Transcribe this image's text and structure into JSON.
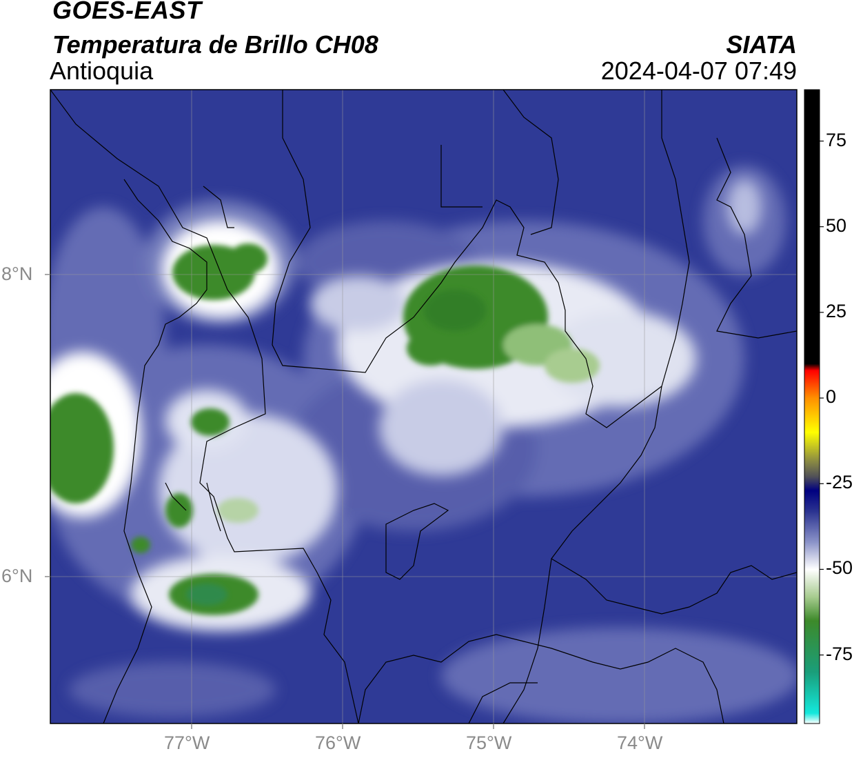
{
  "header": {
    "satellite": "GOES-EAST",
    "product": "Temperatura de Brillo CH08",
    "region": "Antioquia",
    "agency": "SIATA",
    "datetime": "2024-04-07 07:49"
  },
  "axes": {
    "lon_ticks": [
      {
        "value": -77,
        "label": "77°W"
      },
      {
        "value": -76,
        "label": "76°W"
      },
      {
        "value": -75,
        "label": "75°W"
      },
      {
        "value": -74,
        "label": "74°W"
      }
    ],
    "lat_ticks": [
      {
        "value": 8,
        "label": "8°N"
      },
      {
        "value": 6,
        "label": "6°N"
      }
    ],
    "lon_range": [
      -77.95,
      -73.0
    ],
    "lat_range": [
      5.05,
      9.25
    ],
    "gridlines": true
  },
  "colorbar": {
    "ticks": [
      {
        "value": 75,
        "label": "75"
      },
      {
        "value": 50,
        "label": "50"
      },
      {
        "value": 25,
        "label": "25"
      },
      {
        "value": 0,
        "label": "0"
      },
      {
        "value": -25,
        "label": "-25"
      },
      {
        "value": -50,
        "label": "-50"
      },
      {
        "value": -75,
        "label": "-75"
      }
    ],
    "range": [
      -95,
      90
    ],
    "stops": [
      {
        "value": -95,
        "color": "#ffffff"
      },
      {
        "value": -92,
        "color": "#14e8dc"
      },
      {
        "value": -80,
        "color": "#1a9e7a"
      },
      {
        "value": -65,
        "color": "#3d8a2a"
      },
      {
        "value": -58,
        "color": "#a8cc90"
      },
      {
        "value": -50,
        "color": "#ffffff"
      },
      {
        "value": -42,
        "color": "#8a92c8"
      },
      {
        "value": -33,
        "color": "#2a3290"
      },
      {
        "value": -27,
        "color": "#000080"
      },
      {
        "value": -23,
        "color": "#505058"
      },
      {
        "value": -18,
        "color": "#909040"
      },
      {
        "value": -10,
        "color": "#ffff00"
      },
      {
        "value": 0,
        "color": "#ff9000"
      },
      {
        "value": 8,
        "color": "#ff0000"
      },
      {
        "value": 10,
        "color": "#000000"
      },
      {
        "value": 90,
        "color": "#000000"
      }
    ]
  },
  "colors": {
    "background_cloudfree": "#2f3a96",
    "cold_cloud_green": "#3e8a2c",
    "border": "#000000",
    "grid": "#9a9a9a"
  }
}
